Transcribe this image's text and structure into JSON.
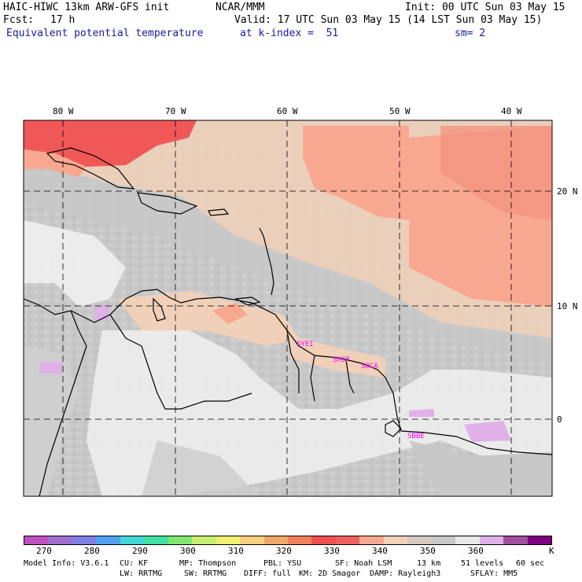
{
  "header": {
    "model_title": "HAIC-HIWC 13km ARW-GFS init",
    "org": "NCAR/MMM",
    "init": "Init: 00 UTC Sun 03 May 15",
    "fcst_label": "Fcst:",
    "fcst_value": "17 h",
    "valid": "Valid: 17 UTC Sun 03 May 15 (14 LST Sun 03 May 15)",
    "field": "Equivalent potential temperature",
    "level": "at k-index =  51",
    "smoothing": "sm= 2"
  },
  "map": {
    "lon_labels": [
      "80 W",
      "70 W",
      "60 W",
      "50 W",
      "40 W"
    ],
    "lat_labels": [
      "20 N",
      "10 N",
      "0"
    ],
    "stations": [
      "SYEI",
      "SMJP",
      "SOCA",
      "SBBE"
    ],
    "colors": {
      "lt_gray": "#c8c8c8",
      "white": "#f0f0f0",
      "tan": "#f0d0b8",
      "salmon": "#f8a890",
      "red": "#f05858",
      "lavender": "#e0b0e8",
      "station": "#ff00ff"
    }
  },
  "colorbar": {
    "colors": [
      "#c050c0",
      "#a070d0",
      "#8080e8",
      "#50a0f0",
      "#40d8d8",
      "#40e0a0",
      "#80e870",
      "#c8f070",
      "#f0f070",
      "#f8d080",
      "#f0a868",
      "#f08058",
      "#f05050",
      "#f06060",
      "#f8a890",
      "#f0d0b8",
      "#d8c8c0",
      "#c8c8c8",
      "#e8e8e8",
      "#e0b0e8",
      "#a050a0",
      "#800080"
    ],
    "labels": [
      "270",
      "280",
      "290",
      "300",
      "310",
      "320",
      "330",
      "340",
      "350",
      "360"
    ],
    "unit": "K"
  },
  "footer": {
    "line1": [
      "Model Info: V3.6.1",
      "CU: KF",
      "MP: Thompson",
      "PBL: YSU",
      "SF: Noah LSM",
      "13 km",
      "51 levels",
      "60 sec"
    ],
    "line2": [
      "LW: RRTMG",
      "SW: RRTMG",
      "DIFF: full",
      "KM: 2D Smagor",
      "DAMP: Rayleigh3",
      "SFLAY: MM5"
    ]
  }
}
